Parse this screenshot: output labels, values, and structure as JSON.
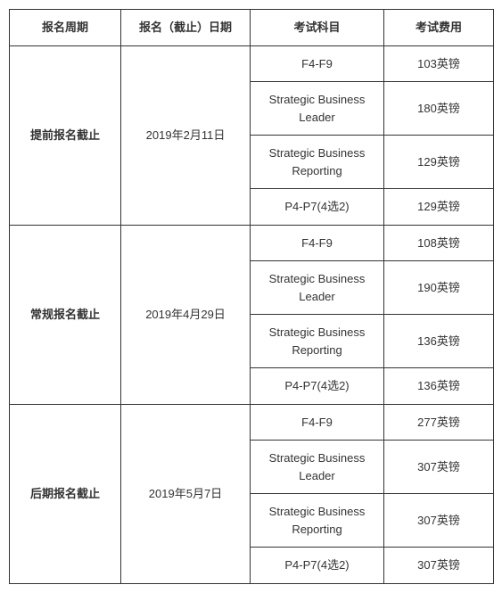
{
  "headers": {
    "period": "报名周期",
    "date": "报名（截止）日期",
    "subject": "考试科目",
    "fee": "考试费用"
  },
  "groups": [
    {
      "period": "提前报名截止",
      "date": "2019年2月11日",
      "rows": [
        {
          "subject": "F4-F9",
          "fee": "103英镑",
          "multiline": false
        },
        {
          "subject_l1": "Strategic Business",
          "subject_l2": "Leader",
          "fee": "180英镑",
          "multiline": true
        },
        {
          "subject_l1": "Strategic Business",
          "subject_l2": "Reporting",
          "fee": "129英镑",
          "multiline": true
        },
        {
          "subject": "P4-P7(4选2)",
          "fee": "129英镑",
          "multiline": false
        }
      ]
    },
    {
      "period": "常规报名截止",
      "date": "2019年4月29日",
      "rows": [
        {
          "subject": "F4-F9",
          "fee": "108英镑",
          "multiline": false
        },
        {
          "subject_l1": "Strategic Business",
          "subject_l2": "Leader",
          "fee": "190英镑",
          "multiline": true
        },
        {
          "subject_l1": "Strategic Business",
          "subject_l2": "Reporting",
          "fee": "136英镑",
          "multiline": true
        },
        {
          "subject": "P4-P7(4选2)",
          "fee": "136英镑",
          "multiline": false
        }
      ]
    },
    {
      "period": "后期报名截止",
      "date": "2019年5月7日",
      "rows": [
        {
          "subject": "F4-F9",
          "fee": "277英镑",
          "multiline": false
        },
        {
          "subject_l1": "Strategic Business",
          "subject_l2": "Leader",
          "fee": "307英镑",
          "multiline": true
        },
        {
          "subject_l1": "Strategic Business",
          "subject_l2": "Reporting",
          "fee": "307英镑",
          "multiline": true
        },
        {
          "subject": "P4-P7(4选2)",
          "fee": "307英镑",
          "multiline": false
        }
      ]
    }
  ],
  "style": {
    "border_color": "#333333",
    "text_color": "#333333",
    "font_size": 13,
    "background": "#ffffff"
  }
}
